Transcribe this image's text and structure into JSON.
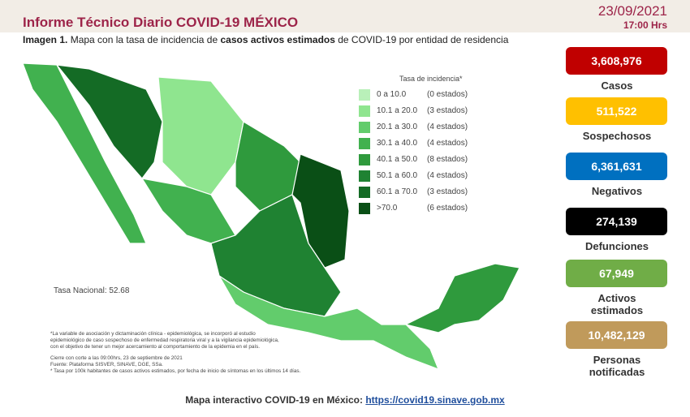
{
  "header": {
    "title": "Informe Técnico Diario COVID-19 MÉXICO",
    "date": "23/09/2021",
    "time": "17:00 Hrs"
  },
  "caption": {
    "label": "Imagen 1.",
    "text1": "Mapa con la tasa de incidencia de",
    "bold": "casos activos estimados",
    "text2": "de COVID-19 por entidad de residencia"
  },
  "legend": {
    "title": "Tasa de incidencia*",
    "items": [
      {
        "range": "0 a 10.0",
        "count": "(0 estados)",
        "color": "#b9f0b9"
      },
      {
        "range": "10.1 a 20.0",
        "count": "(3 estados)",
        "color": "#8fe58f"
      },
      {
        "range": "20.1 a 30.0",
        "count": "(4 estados)",
        "color": "#62cc6c"
      },
      {
        "range": "30.1 a 40.0",
        "count": "(4 estados)",
        "color": "#41b14f"
      },
      {
        "range": "40.1 a 50.0",
        "count": "(8 estados)",
        "color": "#2f9a3d"
      },
      {
        "range": "50.1 a 60.0",
        "count": "(4 estados)",
        "color": "#1f8232"
      },
      {
        "range": "60.1 a 70.0",
        "count": "(3 estados)",
        "color": "#146b25"
      },
      {
        "range": ">70.0",
        "count": "(6 estados)",
        "color": "#0a4f16"
      }
    ]
  },
  "national_rate": "Tasa Nacional: 52.68",
  "notes": [
    "*La variable de asociación y dictaminación clínica - epidemiológica, se incorporó al estudio",
    "epidemiológico de caso sospechoso de enfermedad respiratoria viral y a la vigilancia epidemiológica,",
    "con el objetivo de tener un mejor acercamiento al comportamiento de la epidemia en el país.",
    "Cierre con corte a las 09:00hrs, 23 de septiembre de 2021",
    "Fuente: Plataforma SISVER, SINAVE, DGE, SSa.",
    "* Tasa por 100k habitantes de casos activos estimados, por fecha de inicio de síntomas en los últimos 14 días."
  ],
  "stats": [
    {
      "value": "3,608,976",
      "label": "Casos",
      "color": "#c00000"
    },
    {
      "value": "511,522",
      "label": "Sospechosos",
      "color": "#ffc000"
    },
    {
      "value": "6,361,631",
      "label": "Negativos",
      "color": "#0070c0"
    },
    {
      "value": "274,139",
      "label": "Defunciones",
      "color": "#000000"
    },
    {
      "value": "67,949",
      "label": "Activos estimados",
      "color": "#70ad47"
    },
    {
      "value": "10,482,129",
      "label": "Personas notificadas",
      "color": "#c09a5b"
    }
  ],
  "footer": {
    "text": "Mapa interactivo COVID-19 en México:",
    "link": "https://covid19.sinave.gob.mx"
  }
}
